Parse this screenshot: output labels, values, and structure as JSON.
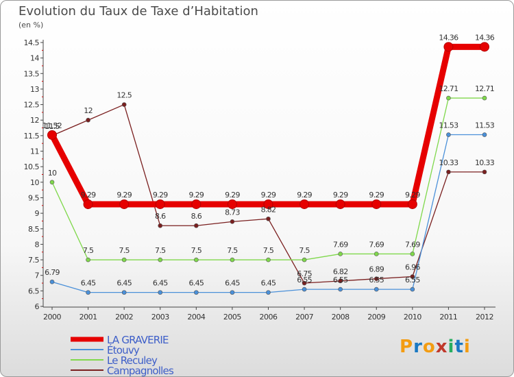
{
  "title": "Evolution du Taux de Taxe d’Habitation",
  "unit_label": "(en %)",
  "logo": {
    "letters": [
      "P",
      "r",
      "o",
      "x",
      "i",
      "t",
      "i"
    ],
    "colors": [
      "#f39c12",
      "#1a78c2",
      "#f39c12",
      "#c0392b",
      "#27ae60",
      "#1a78c2",
      "#f39c12"
    ]
  },
  "chart_data": {
    "type": "line",
    "title": "Evolution du Taux de Taxe d’Habitation",
    "xlabel": "",
    "ylabel": "(en %)",
    "ylim": [
      6,
      14.5
    ],
    "yticks": [
      "6",
      "6.5",
      "7",
      "7.5",
      "8",
      "8.5",
      "9",
      "9.5",
      "10",
      "10.5",
      "11",
      "11.5",
      "12",
      "12.5",
      "13",
      "13.5",
      "14",
      "14.5"
    ],
    "categories": [
      "2000",
      "2001",
      "2002",
      "2003",
      "2004",
      "2005",
      "2006",
      "2007",
      "2008",
      "2009",
      "2010",
      "2011",
      "2012"
    ],
    "grid": false,
    "legend_position": "bottom-left",
    "series": [
      {
        "name": "LA GRAVERIE",
        "color": "#e60000",
        "values": [
          11.52,
          9.29,
          9.29,
          9.29,
          9.29,
          9.29,
          9.29,
          9.29,
          9.29,
          9.29,
          9.29,
          14.36,
          14.36
        ],
        "labels": [
          "11.52",
          "9.29",
          "9.29",
          "9.29",
          "9.29",
          "9.29",
          "9.29",
          "9.29",
          "9.29",
          "9.29",
          "9.29",
          "14.36",
          "14.36"
        ]
      },
      {
        "name": "Étouvy",
        "color": "#4a90d9",
        "values": [
          6.79,
          6.45,
          6.45,
          6.45,
          6.45,
          6.45,
          6.45,
          6.55,
          6.55,
          6.55,
          6.55,
          11.53,
          11.53
        ],
        "labels": [
          "6.79",
          "6.45",
          "6.45",
          "6.45",
          "6.45",
          "6.45",
          "6.45",
          "6.55",
          "6.55",
          "6.55",
          "6.55",
          "11.53",
          "11.53"
        ]
      },
      {
        "name": "Le Reculey",
        "color": "#7fd84b",
        "values": [
          10,
          7.5,
          7.5,
          7.5,
          7.5,
          7.5,
          7.5,
          7.5,
          7.69,
          7.69,
          7.69,
          12.71,
          12.71
        ],
        "labels": [
          "10",
          "7.5",
          "7.5",
          "7.5",
          "7.5",
          "7.5",
          "7.5",
          "7.5",
          "7.69",
          "7.69",
          "7.69",
          "12.71",
          "12.71"
        ]
      },
      {
        "name": "Campagnolles",
        "color": "#7a1f1f",
        "values": [
          11.5,
          12,
          12.5,
          8.6,
          8.6,
          8.73,
          8.82,
          6.75,
          6.82,
          6.89,
          6.96,
          10.33,
          10.33
        ],
        "labels": [
          "11.5",
          "12",
          "12.5",
          "8.6",
          "8.6",
          "8.73",
          "8.82",
          "6.75",
          "6.82",
          "6.89",
          "6.96",
          "10.33",
          "10.33"
        ]
      }
    ]
  }
}
